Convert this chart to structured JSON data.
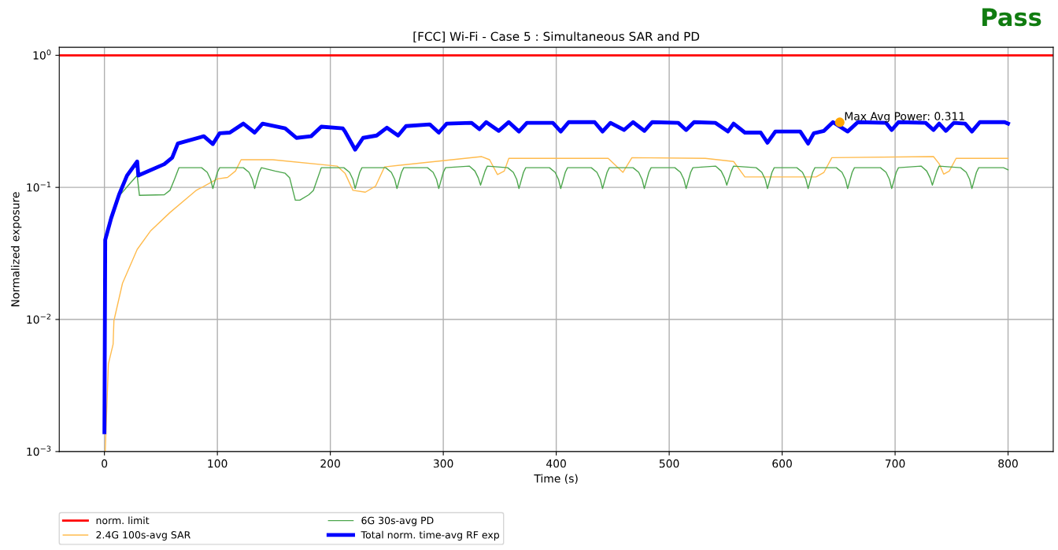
{
  "chart_data": {
    "type": "line",
    "title": "[FCC] Wi-Fi - Case 5 : Simultaneous SAR and PD",
    "xlabel": "Time (s)",
    "ylabel": "Normalized exposure",
    "xlim": [
      -40,
      840
    ],
    "xticks": [
      0,
      100,
      200,
      300,
      400,
      500,
      600,
      700,
      800
    ],
    "ylim": [
      0.001,
      1.15
    ],
    "yticks": [
      {
        "value": 0.001,
        "label": "10$^{−3}$"
      },
      {
        "value": 0.01,
        "label": "10$^{−2}$"
      },
      {
        "value": 0.1,
        "label": "10$^{−1}$"
      },
      {
        "value": 1,
        "label": "10$^{0}$"
      }
    ],
    "log": "y",
    "grid": true,
    "legend": "bottom",
    "ref_lines": [
      {
        "axis": "y",
        "value": 1,
        "label": "norm. limit",
        "color": "#ff0000"
      }
    ],
    "series": [
      {
        "name": "2.4G 100s-avg SAR",
        "color": "#ffbb4d",
        "x": [
          0.7,
          3.5,
          7.7,
          8.4,
          16,
          29,
          41,
          58,
          81,
          100,
          109,
          116,
          121,
          149,
          206,
          213,
          220,
          231,
          240,
          248,
          334,
          341,
          348,
          354,
          358,
          446,
          459,
          467,
          532,
          557,
          567,
          630,
          637,
          644,
          734,
          739,
          743,
          748,
          754,
          800
        ],
        "values": [
          0.001,
          0.0046,
          0.0065,
          0.0098,
          0.0188,
          0.0339,
          0.047,
          0.0645,
          0.0946,
          0.116,
          0.119,
          0.133,
          0.162,
          0.162,
          0.145,
          0.128,
          0.095,
          0.092,
          0.102,
          0.143,
          0.171,
          0.162,
          0.125,
          0.133,
          0.166,
          0.166,
          0.13,
          0.168,
          0.166,
          0.157,
          0.12,
          0.12,
          0.13,
          0.168,
          0.171,
          0.151,
          0.126,
          0.133,
          0.166,
          0.166
        ]
      },
      {
        "name": "6G 30s-avg PD",
        "color": "#4da64d",
        "x": [
          15,
          23,
          29,
          31,
          53,
          58,
          62,
          66,
          86,
          91,
          94,
          96,
          100,
          102,
          123,
          128,
          131,
          133,
          137,
          139,
          151,
          160,
          164,
          169,
          173,
          181,
          185,
          192,
          212,
          217,
          220,
          222,
          226,
          228,
          249,
          254,
          257,
          259,
          263,
          265,
          286,
          291,
          294,
          296,
          300,
          302,
          323,
          328,
          331,
          333,
          337,
          339,
          357,
          362,
          365,
          367,
          371,
          373,
          394,
          399,
          402,
          404,
          408,
          410,
          431,
          436,
          439,
          441,
          445,
          447,
          468,
          473,
          476,
          478,
          482,
          484,
          505,
          510,
          513,
          515,
          519,
          521,
          541,
          546,
          549,
          551,
          555,
          557,
          577,
          582,
          585,
          587,
          591,
          593,
          613,
          618,
          621,
          623,
          627,
          629,
          648,
          653,
          656,
          658,
          662,
          664,
          687,
          692,
          695,
          697,
          701,
          703,
          723,
          728,
          731,
          733,
          737,
          739,
          758,
          763,
          766,
          768,
          772,
          774,
          796,
          800
        ],
        "values": [
          0.09,
          0.108,
          0.123,
          0.087,
          0.088,
          0.095,
          0.115,
          0.141,
          0.141,
          0.13,
          0.115,
          0.098,
          0.13,
          0.141,
          0.141,
          0.13,
          0.115,
          0.098,
          0.13,
          0.141,
          0.133,
          0.128,
          0.118,
          0.08,
          0.08,
          0.088,
          0.095,
          0.141,
          0.141,
          0.13,
          0.115,
          0.098,
          0.13,
          0.141,
          0.141,
          0.13,
          0.115,
          0.098,
          0.13,
          0.141,
          0.141,
          0.13,
          0.115,
          0.098,
          0.13,
          0.141,
          0.145,
          0.133,
          0.118,
          0.104,
          0.133,
          0.145,
          0.141,
          0.13,
          0.115,
          0.098,
          0.13,
          0.141,
          0.141,
          0.13,
          0.115,
          0.098,
          0.13,
          0.141,
          0.141,
          0.13,
          0.115,
          0.098,
          0.13,
          0.141,
          0.141,
          0.13,
          0.115,
          0.098,
          0.13,
          0.141,
          0.141,
          0.13,
          0.115,
          0.098,
          0.13,
          0.141,
          0.145,
          0.133,
          0.118,
          0.104,
          0.133,
          0.145,
          0.141,
          0.13,
          0.115,
          0.098,
          0.13,
          0.141,
          0.141,
          0.13,
          0.115,
          0.098,
          0.13,
          0.141,
          0.141,
          0.13,
          0.115,
          0.098,
          0.13,
          0.141,
          0.141,
          0.13,
          0.115,
          0.098,
          0.13,
          0.141,
          0.145,
          0.133,
          0.118,
          0.104,
          0.133,
          0.145,
          0.141,
          0.13,
          0.115,
          0.098,
          0.13,
          0.141,
          0.141,
          0.136
        ]
      },
      {
        "name": "Total norm. time-avg RF exp",
        "color": "#0000ff",
        "x": [
          0,
          0.7,
          6,
          13,
          20,
          29,
          30,
          53,
          60,
          65,
          88,
          96,
          102,
          111,
          123,
          133,
          140,
          160,
          170,
          183,
          192,
          211,
          213,
          222,
          229,
          241,
          250,
          260,
          267,
          288,
          296,
          303,
          325,
          332,
          338,
          349,
          358,
          367,
          374,
          397,
          404,
          411,
          434,
          441,
          448,
          460,
          468,
          478,
          485,
          508,
          515,
          522,
          541,
          552,
          557,
          567,
          581,
          587,
          594,
          616,
          623,
          628,
          637,
          645,
          658,
          667,
          692,
          697,
          703,
          727,
          734,
          739,
          745,
          752,
          762,
          768,
          775,
          797,
          800
        ],
        "values": [
          0.0014,
          0.04,
          0.0586,
          0.0884,
          0.123,
          0.157,
          0.123,
          0.15,
          0.168,
          0.215,
          0.244,
          0.213,
          0.257,
          0.26,
          0.304,
          0.26,
          0.304,
          0.28,
          0.237,
          0.244,
          0.288,
          0.28,
          0.265,
          0.193,
          0.237,
          0.247,
          0.283,
          0.247,
          0.291,
          0.3,
          0.26,
          0.304,
          0.308,
          0.276,
          0.312,
          0.268,
          0.312,
          0.265,
          0.308,
          0.308,
          0.265,
          0.312,
          0.312,
          0.265,
          0.308,
          0.272,
          0.312,
          0.268,
          0.312,
          0.308,
          0.272,
          0.312,
          0.308,
          0.265,
          0.304,
          0.26,
          0.26,
          0.218,
          0.265,
          0.265,
          0.215,
          0.257,
          0.268,
          0.312,
          0.265,
          0.312,
          0.308,
          0.272,
          0.312,
          0.308,
          0.272,
          0.304,
          0.268,
          0.308,
          0.304,
          0.265,
          0.312,
          0.312,
          0.304
        ]
      },
      {
        "type": "scatter",
        "marker": "circle",
        "color": "#ffa500",
        "x": [
          651
        ],
        "values": [
          0.311
        ]
      }
    ],
    "annotations": [
      "Pass",
      {
        "text": "Max Avg Power: 0.311",
        "x": 651,
        "y": 0.311
      }
    ]
  }
}
